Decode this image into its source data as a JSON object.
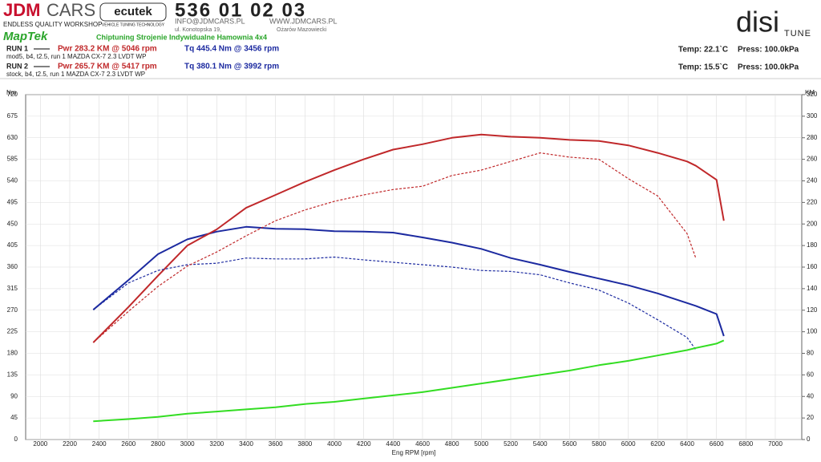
{
  "header": {
    "brand": "JDM",
    "brand2": "CARS",
    "brand_sub": "ENDLESS QUALITY WORKSHOP",
    "ecutek": "ecutek",
    "ecutek_sub": "VEHICLE TUNING TECHNOLOGY",
    "phone": "536 01 02 03",
    "email": "INFO@JDMCARS.PL",
    "web": "WWW.JDMCARS.PL",
    "street": "ul. Konotopska 19,",
    "city": "Ożarów Mazowiecki",
    "maptek": "MapTek",
    "slogan": "Chiptuning Strojenie Indywidualne Hamownia 4x4",
    "disi": "disi",
    "tune": "TUNE"
  },
  "runs": [
    {
      "label": "RUN 1",
      "power": "Pwr  283.2 KM @ 5046 rpm",
      "torque": "Tq 445.4 Nm @ 3456 rpm",
      "desc": "mod5, b4, t2.5, run 1 MAZDA CX-7 2.3 LVDT WP",
      "temp": "Temp: 22.1`C",
      "press": "Press: 100.0kPa"
    },
    {
      "label": "RUN 2",
      "power": "Pwr  265.7 KM @ 5417 rpm",
      "torque": "Tq 380.1 Nm @ 3992 rpm",
      "desc": "stock, b4, t2.5, run 1 MAZDA CX-7 2.3 LVDT WP",
      "temp": "Temp: 15.5`C",
      "press": "Press: 100.0kPa"
    }
  ],
  "chart_data": {
    "type": "line",
    "xlabel": "Eng RPM [rpm]",
    "ylabel": "Nm",
    "y2label": "KM",
    "grid": true,
    "xlim": [
      1900,
      7180
    ],
    "xticks": [
      2000,
      2200,
      2400,
      2600,
      2800,
      3000,
      3200,
      3400,
      3600,
      3800,
      4000,
      4200,
      4400,
      4600,
      4800,
      5000,
      5200,
      5400,
      5600,
      5800,
      6000,
      6200,
      6400,
      6600,
      6800,
      7000
    ],
    "ylim": [
      0,
      720
    ],
    "yticks": [
      0,
      45,
      90,
      135,
      180,
      225,
      270,
      315,
      360,
      405,
      450,
      495,
      540,
      585,
      630,
      675,
      720
    ],
    "y2lim": [
      0,
      320
    ],
    "y2ticks": [
      0,
      20,
      40,
      60,
      80,
      100,
      120,
      140,
      160,
      180,
      200,
      220,
      240,
      260,
      280,
      300,
      320
    ],
    "x": [
      2360,
      2600,
      2800,
      3000,
      3200,
      3400,
      3600,
      3800,
      4000,
      4200,
      4400,
      4600,
      4800,
      5000,
      5200,
      5400,
      5600,
      5800,
      6000,
      6200,
      6400,
      6460,
      6600,
      6650
    ],
    "series": [
      {
        "color": "#1c2aa0",
        "dashed": false,
        "axis": "y",
        "values": [
          271,
          333,
          387,
          418,
          434,
          444,
          440,
          439,
          435,
          434,
          432,
          422,
          411,
          398,
          379,
          365,
          350,
          336,
          322,
          305,
          285,
          279,
          262,
          216
        ]
      },
      {
        "color": "#c0282a",
        "dashed": false,
        "axis": "y2",
        "values": [
          90,
          123,
          152,
          180,
          195,
          215,
          227,
          239,
          250,
          260,
          269,
          274,
          280,
          283,
          281,
          280,
          278,
          277,
          273,
          266,
          258,
          254,
          241,
          203
        ]
      },
      {
        "color": "#1c2aa0",
        "dashed": true,
        "axis": "y",
        "values": [
          271,
          327,
          353,
          365,
          368,
          379,
          377,
          377,
          381,
          375,
          370,
          365,
          360,
          353,
          351,
          344,
          327,
          312,
          285,
          250,
          213,
          187,
          null,
          null
        ]
      },
      {
        "color": "#c0282a",
        "dashed": true,
        "axis": "y2",
        "values": [
          90,
          119,
          142,
          161,
          174,
          189,
          203,
          213,
          221,
          227,
          232,
          235,
          245,
          250,
          258,
          266,
          262,
          260,
          242,
          226,
          191,
          168,
          null,
          null
        ]
      },
      {
        "color": "#33dd22",
        "dashed": false,
        "axis": "y2",
        "values": [
          17,
          19,
          21,
          24,
          26,
          28,
          30,
          33,
          35,
          38,
          41,
          44,
          48,
          52,
          56,
          60,
          64,
          69,
          73,
          78,
          83,
          85,
          89,
          92
        ]
      }
    ]
  }
}
